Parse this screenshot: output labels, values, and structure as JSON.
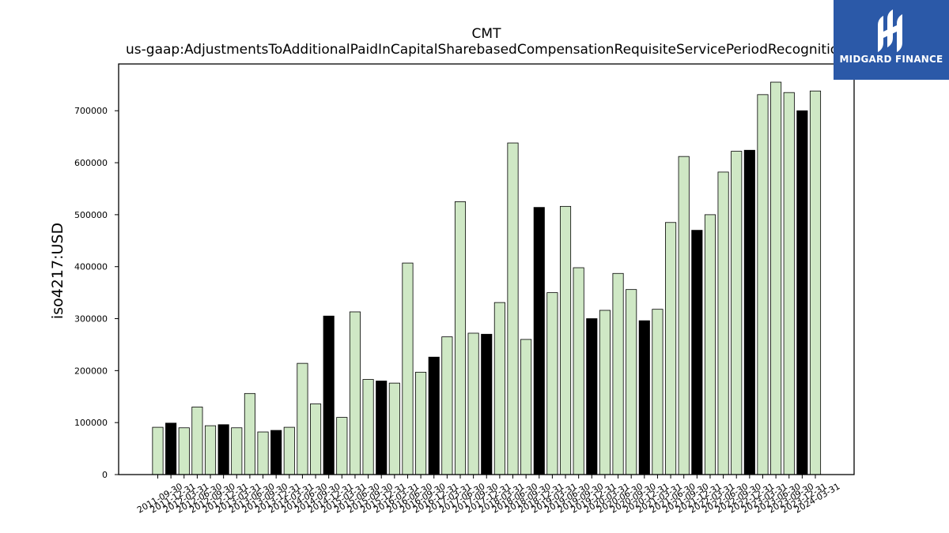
{
  "logo": {
    "text": "MIDGARD FINANCE",
    "icon": "midgard-m-icon",
    "color": "#2b59a8"
  },
  "chart_data": {
    "type": "bar",
    "title": "CMT",
    "subtitle": "us-gaap:AdjustmentsToAdditionalPaidInCapitalSharebasedCompensationRequisiteServicePeriodRecognition",
    "xlabel": "",
    "ylabel": "iso4217:USD",
    "ylim": [
      0,
      790000
    ],
    "yticks": [
      0,
      100000,
      200000,
      300000,
      400000,
      500000,
      600000,
      700000
    ],
    "ytick_labels": [
      "0",
      "100000",
      "200000",
      "300000",
      "400000",
      "500000",
      "600000",
      "700000"
    ],
    "grid": false,
    "colors": {
      "light": "#cfe8c5",
      "dark": "#000000",
      "edge": "#000000"
    },
    "categories": [
      "2011-09-30",
      "2011-12-31",
      "2012-03-31",
      "2012-06-30",
      "2012-09-30",
      "2012-12-31",
      "2013-03-31",
      "2013-06-30",
      "2013-09-30",
      "2013-12-31",
      "2014-03-31",
      "2014-06-30",
      "2014-09-30",
      "2014-12-31",
      "2015-03-31",
      "2015-06-30",
      "2015-09-30",
      "2015-12-31",
      "2016-03-31",
      "2016-06-30",
      "2016-09-30",
      "2016-12-31",
      "2017-03-31",
      "2017-06-30",
      "2017-09-30",
      "2017-12-31",
      "2018-03-31",
      "2018-06-30",
      "2018-09-30",
      "2018-12-31",
      "2019-03-31",
      "2019-06-30",
      "2019-09-30",
      "2019-12-31",
      "2020-03-31",
      "2020-06-30",
      "2020-09-30",
      "2020-12-31",
      "2021-03-31",
      "2021-06-30",
      "2021-09-30",
      "2021-12-31",
      "2022-03-31",
      "2022-06-30",
      "2022-09-30",
      "2022-12-31",
      "2023-03-31",
      "2023-06-30",
      "2023-09-30",
      "2023-12-31",
      "2024-03-31"
    ],
    "values": [
      91000,
      99000,
      90000,
      130000,
      94000,
      96000,
      90000,
      156000,
      82000,
      85000,
      91000,
      214000,
      136000,
      305000,
      110000,
      313000,
      183000,
      180000,
      176000,
      407000,
      197000,
      226000,
      265000,
      525000,
      272000,
      270000,
      331000,
      638000,
      260000,
      514000,
      350000,
      516000,
      398000,
      300000,
      316000,
      387000,
      356000,
      296000,
      318000,
      485000,
      612000,
      470000,
      500000,
      582000,
      622000,
      624000,
      731000,
      755000,
      735000,
      700000,
      738000
    ],
    "highlight": [
      false,
      true,
      false,
      false,
      false,
      true,
      false,
      false,
      false,
      true,
      false,
      false,
      false,
      true,
      false,
      false,
      false,
      true,
      false,
      false,
      false,
      true,
      false,
      false,
      false,
      true,
      false,
      false,
      false,
      true,
      false,
      false,
      false,
      true,
      false,
      false,
      false,
      true,
      false,
      false,
      false,
      true,
      false,
      false,
      false,
      true,
      false,
      false,
      false,
      true,
      false
    ]
  }
}
